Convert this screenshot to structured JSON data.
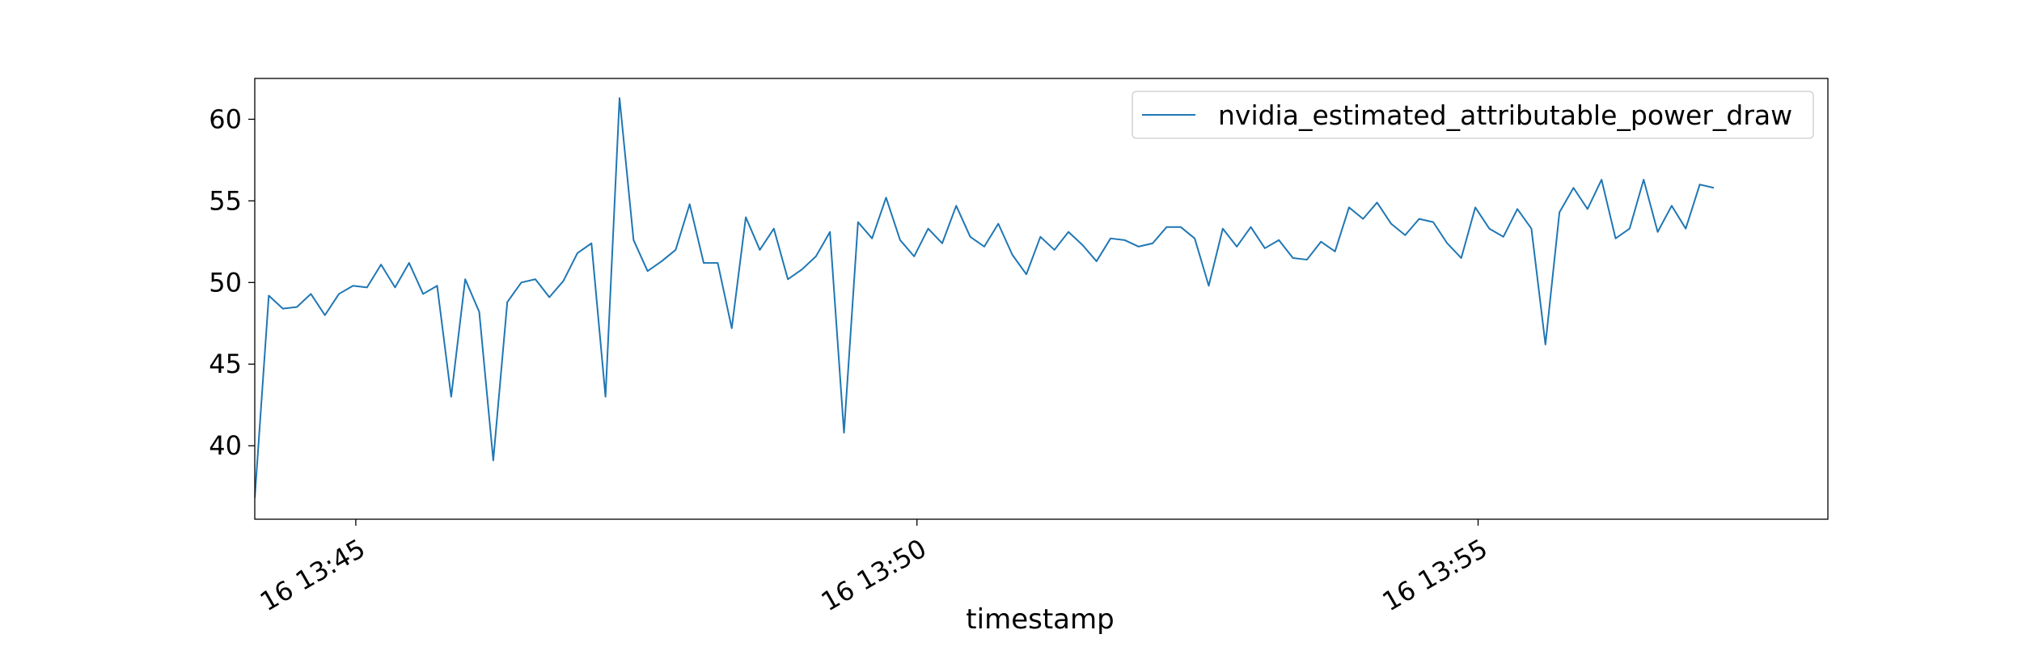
{
  "chart_data": {
    "type": "line",
    "title": "",
    "xlabel": "timestamp",
    "ylabel": "",
    "x_start": "2024-01-16 13:44:06",
    "x_step_seconds": 7.5,
    "xlim": [
      "16 13:44:06",
      "16 13:58:07"
    ],
    "ylim": [
      35.5,
      62.5
    ],
    "x_ticks": [
      {
        "label": "16 13:45",
        "time": "13:45:00"
      },
      {
        "label": "16 13:50",
        "time": "13:50:00"
      },
      {
        "label": "16 13:55",
        "time": "13:55:00"
      }
    ],
    "y_ticks": [
      40,
      45,
      50,
      55,
      60
    ],
    "y_tick_labels": [
      "40",
      "45",
      "50",
      "55",
      "60"
    ],
    "grid": false,
    "legend_position": "top-right",
    "series": [
      {
        "name": "nvidia_estimated_attributable_power_draw",
        "color": "#1f77b4",
        "values": [
          36.8,
          49.2,
          48.4,
          48.5,
          49.3,
          48.0,
          49.3,
          49.8,
          49.7,
          51.1,
          49.7,
          51.2,
          49.3,
          49.8,
          43.0,
          50.2,
          48.2,
          39.1,
          48.8,
          50.0,
          50.2,
          49.1,
          50.1,
          51.8,
          52.4,
          43.0,
          61.3,
          52.6,
          50.7,
          51.3,
          52.0,
          54.8,
          51.2,
          51.2,
          47.2,
          54.0,
          52.0,
          53.3,
          50.2,
          50.8,
          51.6,
          53.1,
          40.8,
          53.7,
          52.7,
          55.2,
          52.6,
          51.6,
          53.3,
          52.4,
          54.7,
          52.8,
          52.2,
          53.6,
          51.7,
          50.5,
          52.8,
          52.0,
          53.1,
          52.3,
          51.3,
          52.7,
          52.6,
          52.2,
          52.4,
          53.4,
          53.4,
          52.7,
          49.8,
          53.3,
          52.2,
          53.4,
          52.1,
          52.6,
          51.5,
          51.4,
          52.5,
          51.9,
          54.6,
          53.9,
          54.9,
          53.6,
          52.9,
          53.9,
          53.7,
          52.4,
          51.5,
          54.6,
          53.3,
          52.8,
          54.5,
          53.3,
          46.2,
          54.3,
          55.8,
          54.5,
          56.3,
          52.7,
          53.3,
          56.3,
          53.1,
          54.7,
          53.3,
          56.0,
          55.8
        ]
      }
    ]
  }
}
